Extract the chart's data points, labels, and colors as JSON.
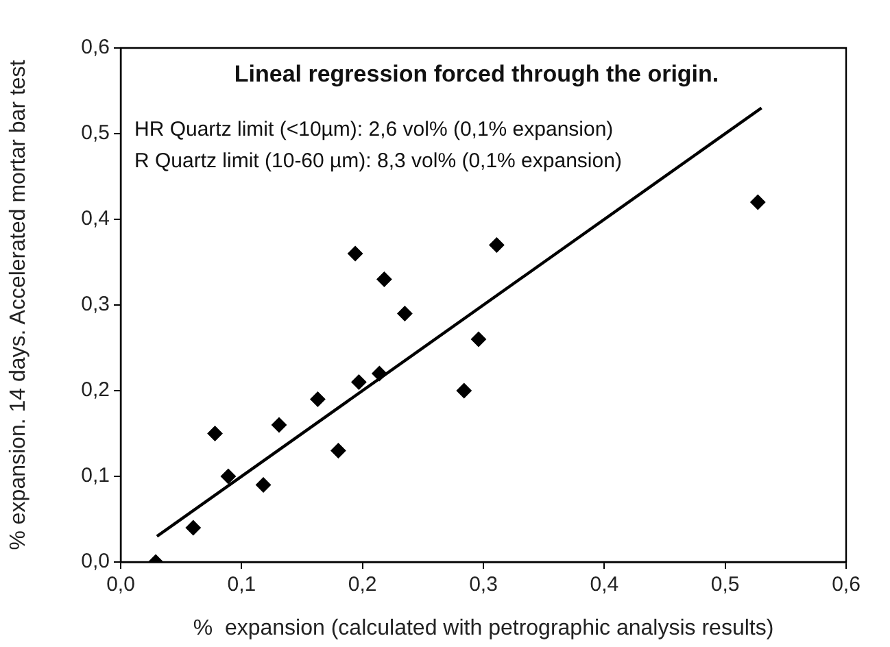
{
  "chart_data": {
    "type": "scatter",
    "title": "Lineal regression forced through the origin.",
    "annotations": [
      "HR Quartz limit (<10µm): 2,6 vol% (0,1% expansion)",
      "R Quartz limit (10-60 µm): 8,3 vol% (0,1% expansion)"
    ],
    "xlabel": "%  expansion (calculated with petrographic analysis results)",
    "ylabel": "% expansion. 14 days. Accelerated mortar bar test",
    "series": [
      {
        "type": "scatter",
        "color": "#000000",
        "marker": "diamond",
        "x": [
          0.029,
          0.06,
          0.078,
          0.089,
          0.118,
          0.131,
          0.163,
          0.18,
          0.194,
          0.197,
          0.214,
          0.218,
          0.235,
          0.284,
          0.296,
          0.311,
          0.527
        ],
        "values": [
          0,
          0.04,
          0.15,
          0.1,
          0.09,
          0.16,
          0.19,
          0.13,
          0.36,
          0.21,
          0.22,
          0.33,
          0.29,
          0.2,
          0.26,
          0.37,
          0.42
        ]
      },
      {
        "type": "line",
        "color": "#000000",
        "marker": "none",
        "line_style": "solid",
        "x": [
          0.03,
          0.53
        ],
        "values": [
          0.03,
          0.53
        ]
      }
    ],
    "xlim": [
      0,
      0.6
    ],
    "ylim": [
      0,
      0.6
    ],
    "xticks": [
      {
        "value": 0,
        "label": "0,0"
      },
      {
        "value": 0.1,
        "label": "0,1"
      },
      {
        "value": 0.2,
        "label": "0,2"
      },
      {
        "value": 0.3,
        "label": "0,3"
      },
      {
        "value": 0.4,
        "label": "0,4"
      },
      {
        "value": 0.5,
        "label": "0,5"
      },
      {
        "value": 0.6,
        "label": "0,6"
      }
    ],
    "yticks": [
      {
        "value": 0,
        "label": "0,0"
      },
      {
        "value": 0.1,
        "label": "0,1"
      },
      {
        "value": 0.2,
        "label": "0,2"
      },
      {
        "value": 0.3,
        "label": "0,3"
      },
      {
        "value": 0.4,
        "label": "0,4"
      },
      {
        "value": 0.5,
        "label": "0,5"
      },
      {
        "value": 0.6,
        "label": "0,6"
      }
    ],
    "grid": false,
    "legend": false
  }
}
